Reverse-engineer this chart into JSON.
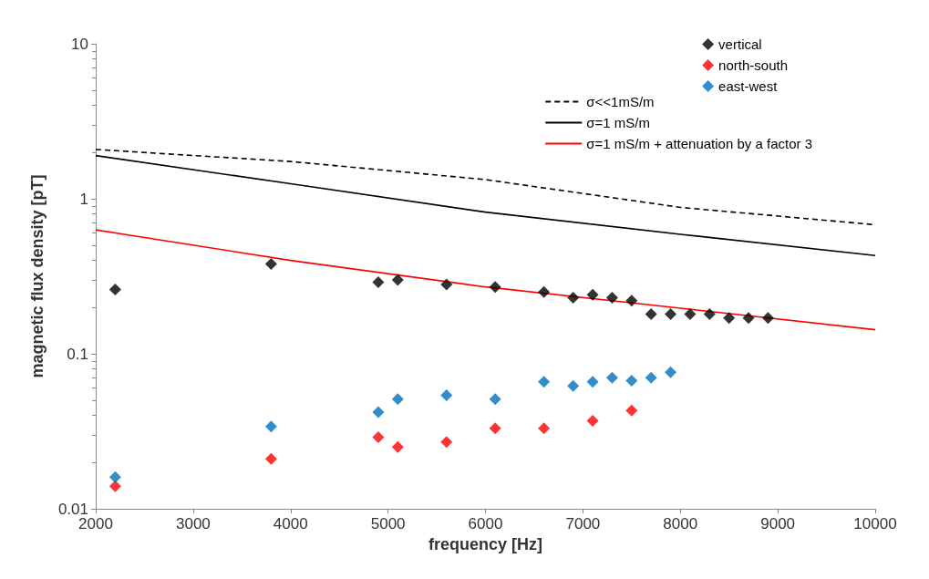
{
  "chart_data": {
    "type": "scatter",
    "xlabel": "frequency [Hz]",
    "ylabel": "magnetic flux density [pT]",
    "log": "y",
    "xlim": [
      2000,
      10000
    ],
    "xticks": [
      2000,
      3000,
      4000,
      5000,
      6000,
      7000,
      8000,
      9000,
      10000
    ],
    "ylim": [
      0.01,
      10
    ],
    "yticks": [
      0.01,
      0.1,
      1,
      10
    ],
    "grid": false,
    "legend": "top right",
    "series": [
      {
        "name": "vertical",
        "marker": "diamond",
        "color": "#000000",
        "x": [
          2200,
          3800,
          4900,
          5100,
          5600,
          6100,
          6600,
          6900,
          7100,
          7300,
          7500,
          7700,
          7900,
          8100,
          8300,
          8500,
          8700,
          8900
        ],
        "values": [
          0.26,
          0.38,
          0.29,
          0.3,
          0.28,
          0.27,
          0.25,
          0.23,
          0.24,
          0.23,
          0.22,
          0.18,
          0.18,
          0.18,
          0.18,
          0.17,
          0.17,
          0.17
        ]
      },
      {
        "name": "north-south",
        "marker": "diamond",
        "color": "#ff0000",
        "x": [
          2200,
          3800,
          4900,
          5100,
          5600,
          6100,
          6600,
          7100,
          7500
        ],
        "values": [
          0.014,
          0.021,
          0.029,
          0.025,
          0.027,
          0.033,
          0.033,
          0.037,
          0.043
        ]
      },
      {
        "name": "east-west",
        "marker": "diamond",
        "color": "#0070c0",
        "x": [
          2200,
          3800,
          4900,
          5100,
          5600,
          6100,
          6600,
          6900,
          7100,
          7300,
          7500,
          7700,
          7900
        ],
        "values": [
          0.016,
          0.034,
          0.042,
          0.051,
          0.054,
          0.051,
          0.066,
          0.062,
          0.066,
          0.07,
          0.067,
          0.07,
          0.076
        ]
      },
      {
        "name": "σ<<1mS/m",
        "type": "line",
        "marker": "none",
        "line_style": "dashed",
        "color": "#000000",
        "x": [
          2000,
          4000,
          6000,
          8000,
          10000
        ],
        "values": [
          2.08,
          1.74,
          1.33,
          0.88,
          0.68
        ]
      },
      {
        "name": "σ=1 mS/m",
        "type": "line",
        "marker": "none",
        "line_style": "solid",
        "color": "#000000",
        "x": [
          2000,
          4000,
          6000,
          8000,
          10000
        ],
        "values": [
          1.9,
          1.25,
          0.82,
          0.59,
          0.43
        ]
      },
      {
        "name": "σ=1 mS/m + attenuation by a factor 3",
        "type": "line",
        "marker": "none",
        "line_style": "solid",
        "color": "#ff0000",
        "x": [
          2000,
          4000,
          6000,
          8000,
          10000
        ],
        "values": [
          0.63,
          0.4,
          0.27,
          0.197,
          0.143
        ]
      }
    ]
  }
}
